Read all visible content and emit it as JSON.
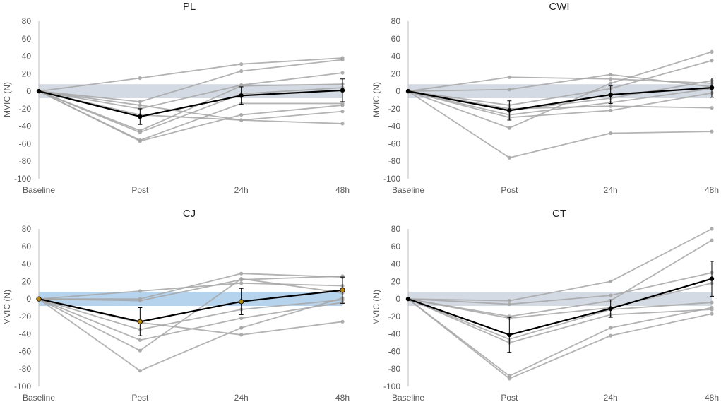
{
  "chart_data": [
    {
      "type": "line",
      "title": "PL",
      "ylabel": "MVIC (N)",
      "xlabel": "",
      "categories": [
        "Baseline",
        "Post",
        "24h",
        "48h"
      ],
      "ylim": [
        -100,
        80
      ],
      "yticks": [
        "80",
        "60",
        "40",
        "20",
        "0",
        "-20",
        "-40",
        "-60",
        "-80",
        "-100"
      ],
      "band": {
        "range": [
          -8,
          8
        ],
        "color": "#ccd3df"
      },
      "individuals": [
        [
          0,
          15,
          31,
          38
        ],
        [
          0,
          -12,
          23,
          36
        ],
        [
          0,
          -20,
          7,
          21
        ],
        [
          0,
          -45,
          6,
          8
        ],
        [
          0,
          -47,
          -3,
          4
        ],
        [
          0,
          -56,
          -14,
          -14
        ],
        [
          0,
          -57,
          -27,
          -16
        ],
        [
          0,
          -27,
          -33,
          -23
        ],
        [
          0,
          -16,
          -33,
          -37
        ]
      ],
      "mean": {
        "values": [
          0,
          -29,
          -5,
          1
        ],
        "error": [
          null,
          9,
          10,
          13
        ]
      }
    },
    {
      "type": "line",
      "title": "CWI",
      "ylabel": "MVIC (N)",
      "xlabel": "",
      "categories": [
        "Baseline",
        "Post",
        "24h",
        "48h"
      ],
      "ylim": [
        -100,
        80
      ],
      "yticks": [
        "80",
        "60",
        "40",
        "20",
        "0",
        "-20",
        "-40",
        "-60",
        "-80",
        "-100"
      ],
      "band": {
        "range": [
          -8,
          8
        ],
        "color": "#ccd3df"
      },
      "individuals": [
        [
          0,
          16,
          14,
          9
        ],
        [
          0,
          2,
          19,
          5
        ],
        [
          0,
          -42,
          9,
          45
        ],
        [
          0,
          -16,
          3,
          35
        ],
        [
          0,
          -22,
          -8,
          12
        ],
        [
          0,
          -27,
          -13,
          3
        ],
        [
          0,
          -30,
          -22,
          -2
        ],
        [
          0,
          -20,
          -17,
          -19
        ],
        [
          0,
          -76,
          -48,
          -46
        ]
      ],
      "mean": {
        "values": [
          0,
          -22,
          -4,
          4
        ],
        "error": [
          null,
          11,
          10,
          11
        ]
      }
    },
    {
      "type": "line",
      "title": "CJ",
      "ylabel": "MVIC (N)",
      "xlabel": "",
      "categories": [
        "Baseline",
        "Post",
        "24h",
        "48h"
      ],
      "ylim": [
        -100,
        80
      ],
      "yticks": [
        "80",
        "60",
        "40",
        "20",
        "0",
        "-20",
        "-40",
        "-60",
        "-80",
        "-100"
      ],
      "band": {
        "range": [
          -8,
          8
        ],
        "color": "#a9cbea"
      },
      "mean_color": "#b8860b",
      "individuals": [
        [
          0,
          9,
          18,
          15
        ],
        [
          0,
          0,
          29,
          25
        ],
        [
          0,
          -2,
          22,
          26
        ],
        [
          0,
          -59,
          23,
          7
        ],
        [
          0,
          -82,
          -33,
          1
        ],
        [
          0,
          -35,
          -12,
          -1
        ],
        [
          0,
          -47,
          -22,
          -4
        ],
        [
          0,
          -27,
          -41,
          -26
        ]
      ],
      "mean": {
        "values": [
          0,
          -26,
          -3,
          10
        ],
        "error": [
          null,
          16,
          15,
          15
        ]
      }
    },
    {
      "type": "line",
      "title": "CT",
      "ylabel": "MVIC (N)",
      "xlabel": "",
      "categories": [
        "Baseline",
        "Post",
        "24h",
        "48h"
      ],
      "ylim": [
        -100,
        80
      ],
      "yticks": [
        "80",
        "60",
        "40",
        "20",
        "0",
        "-20",
        "-40",
        "-60",
        "-80",
        "-100"
      ],
      "band": {
        "range": [
          -8,
          8
        ],
        "color": "#ccd3df"
      },
      "individuals": [
        [
          0,
          -2,
          20,
          80
        ],
        [
          0,
          -6,
          4,
          30
        ],
        [
          0,
          -20,
          -2,
          67
        ],
        [
          0,
          -22,
          -10,
          18
        ],
        [
          0,
          -46,
          -12,
          -4
        ],
        [
          0,
          -50,
          -18,
          -12
        ],
        [
          0,
          -88,
          -33,
          -10
        ],
        [
          0,
          -91,
          -42,
          -17
        ]
      ],
      "mean": {
        "values": [
          0,
          -41,
          -11,
          23
        ],
        "error": [
          null,
          20,
          10,
          20
        ]
      }
    }
  ]
}
